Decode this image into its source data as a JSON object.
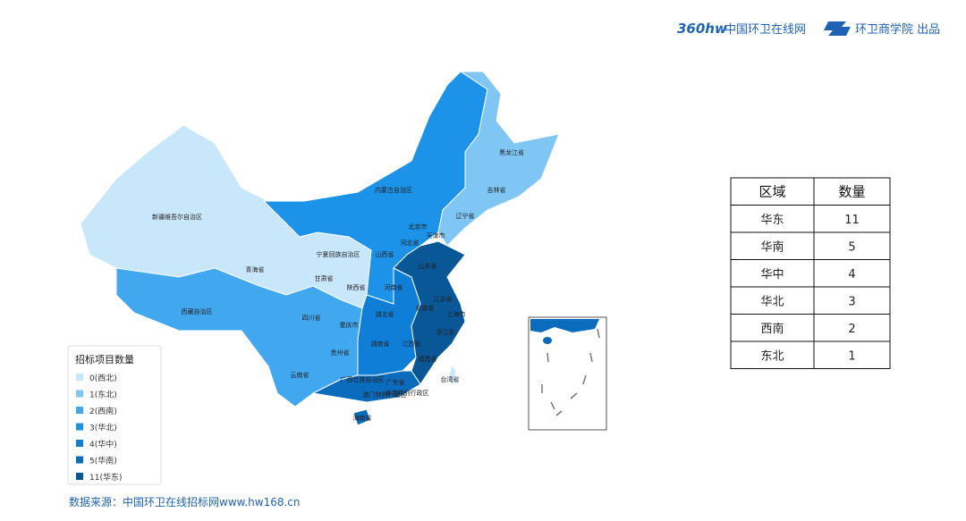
{
  "header": {
    "logo_mark": "360hw",
    "site": "中国环卫在线网",
    "credit": "环卫商学院 出品"
  },
  "map": {
    "provinces": [
      "新疆维吾尔自治区",
      "青海省",
      "西藏自治区",
      "甘肃省",
      "宁夏回族自治区",
      "陕西省",
      "四川省",
      "重庆市",
      "贵州省",
      "云南省",
      "内蒙古自治区",
      "黑龙江省",
      "吉林省",
      "辽宁省",
      "北京市",
      "天津市",
      "河北省",
      "山西省",
      "山东省",
      "河南省",
      "江苏省",
      "安徽省",
      "上海市",
      "湖北省",
      "浙江省",
      "湖南省",
      "江西省",
      "福建省",
      "广西壮族自治区",
      "广东省",
      "香港特别行政区",
      "澳门特别行政区",
      "台湾省",
      "海南省"
    ]
  },
  "legend": {
    "title": "招标项目数量",
    "items": [
      {
        "label": "0(西北)",
        "color": "#c9e7fb"
      },
      {
        "label": "1(东北)",
        "color": "#7fc6f5"
      },
      {
        "label": "2(西南)",
        "color": "#41a8ef"
      },
      {
        "label": "3(华北)",
        "color": "#1c92e8"
      },
      {
        "label": "4(华中)",
        "color": "#0f7ed6"
      },
      {
        "label": "5(华南)",
        "color": "#0b6bbd"
      },
      {
        "label": "11(华东)",
        "color": "#0a5797"
      }
    ]
  },
  "table": {
    "columns": [
      "区域",
      "数量"
    ],
    "rows": [
      [
        "华东",
        11
      ],
      [
        "华南",
        5
      ],
      [
        "华中",
        4
      ],
      [
        "华北",
        3
      ],
      [
        "西南",
        2
      ],
      [
        "东北",
        1
      ]
    ]
  },
  "source": "数据来源：中国环卫在线招标网www.hw168.cn"
}
